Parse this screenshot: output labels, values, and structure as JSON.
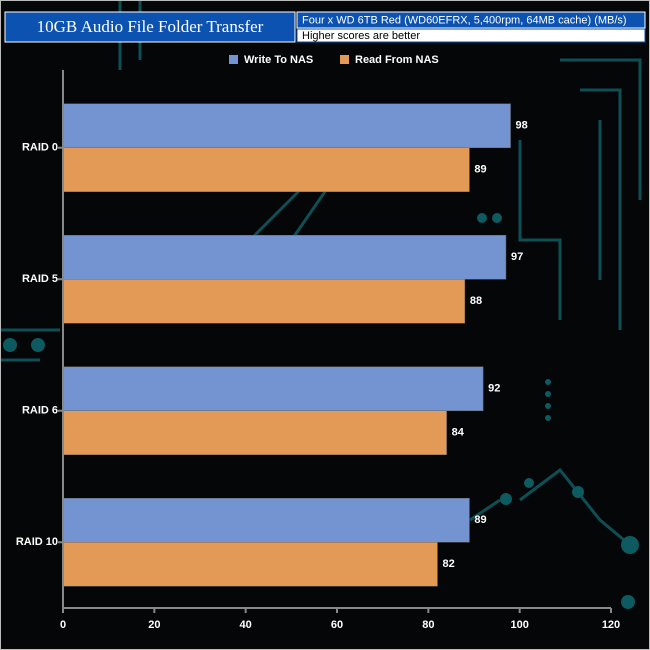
{
  "chart_data": {
    "type": "hbar",
    "title": "10GB Audio File Folder Transfer",
    "subtitle": "Four x WD 6TB Red (WD60EFRX, 5,400rpm, 64MB cache) (MB/s)",
    "note": "Higher scores are better",
    "categories": [
      "RAID 0",
      "RAID 5",
      "RAID 6",
      "RAID 10"
    ],
    "series": [
      {
        "name": "Write To NAS",
        "color": "#7394d0",
        "values": [
          98,
          97,
          92,
          89
        ]
      },
      {
        "name": "Read From NAS",
        "color": "#e39a57",
        "values": [
          89,
          88,
          84,
          82
        ]
      }
    ],
    "xlim": [
      0,
      120
    ],
    "xticks": [
      0,
      20,
      40,
      60,
      80,
      100,
      120
    ],
    "legend": "top"
  }
}
